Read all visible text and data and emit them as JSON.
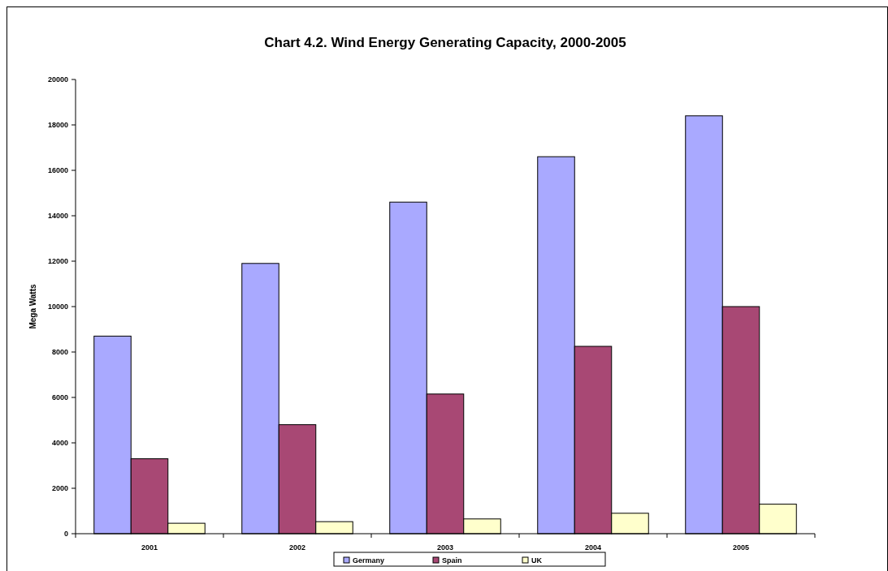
{
  "chart_data": {
    "type": "bar",
    "title": "Chart 4.2. Wind Energy Generating Capacity, 2000-2005",
    "ylabel": "Mega Watts",
    "categories": [
      "2001",
      "2002",
      "2003",
      "2004",
      "2005"
    ],
    "series": [
      {
        "name": "Germany",
        "color": "#a9a9ff",
        "values": [
          8700,
          11900,
          14600,
          16600,
          18400
        ]
      },
      {
        "name": "Spain",
        "color": "#a84874",
        "values": [
          3300,
          4800,
          6150,
          8250,
          10000
        ]
      },
      {
        "name": "UK",
        "color": "#ffffcc",
        "values": [
          460,
          530,
          650,
          900,
          1300
        ]
      }
    ],
    "ylim": [
      0,
      20000
    ],
    "yticks": [
      0,
      2000,
      4000,
      6000,
      8000,
      10000,
      12000,
      14000,
      16000,
      18000,
      20000
    ],
    "grid": false,
    "legend": "bottom"
  }
}
